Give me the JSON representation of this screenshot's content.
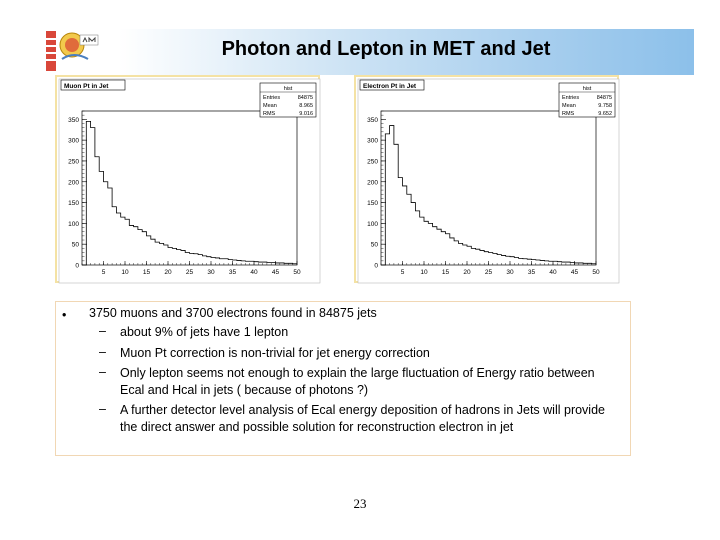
{
  "slide": {
    "title": "Photon and Lepton in MET and Jet",
    "page_number": "23"
  },
  "notes": {
    "bullet": "•",
    "main": "3750 muons and 3700 electrons found in 84875 jets",
    "dash": "–",
    "items": [
      "about 9% of jets have 1 lepton",
      "Muon Pt correction is non-trivial for jet energy correction",
      "Only lepton seems not enough to explain the large fluctuation of Energy ratio between Ecal and Hcal in jets ( because of photons ?)",
      "A further detector level analysis of Ecal energy deposition of hadrons in Jets will provide the direct answer and possible solution for reconstruction electron in jet"
    ]
  },
  "colors": {
    "frame_border": "#f4e2a4",
    "canvas_bg": "#ffffff",
    "histogram_line": "#000000"
  },
  "chart_data": [
    {
      "type": "histogram",
      "title": "Muon Pt in Jet",
      "stats": {
        "header": "hist",
        "rows": [
          [
            "Entries",
            "84875"
          ],
          [
            "Mean",
            "8.965"
          ],
          [
            "RMS",
            "9.016"
          ]
        ]
      },
      "xlim": [
        0,
        50
      ],
      "ylim": [
        0,
        370
      ],
      "x_ticks": [
        5,
        10,
        15,
        20,
        25,
        30,
        35,
        40,
        45,
        50
      ],
      "y_ticks": [
        0,
        50,
        100,
        150,
        200,
        250,
        300,
        350
      ],
      "bin_width": 1,
      "bin_start": 0,
      "values": [
        0,
        345,
        330,
        260,
        225,
        200,
        185,
        140,
        125,
        115,
        110,
        95,
        92,
        85,
        80,
        70,
        62,
        55,
        52,
        48,
        42,
        40,
        37,
        35,
        30,
        28,
        27,
        25,
        22,
        20,
        18,
        17,
        15,
        15,
        13,
        12,
        11,
        10,
        9,
        9,
        8,
        7,
        7,
        6,
        6,
        5,
        5,
        4,
        4,
        3
      ]
    },
    {
      "type": "histogram",
      "title": "Electron Pt in Jet",
      "stats": {
        "header": "hist",
        "rows": [
          [
            "Entries",
            "84875"
          ],
          [
            "Mean",
            "9.758"
          ],
          [
            "RMS",
            "9.652"
          ]
        ]
      },
      "xlim": [
        0,
        50
      ],
      "ylim": [
        0,
        370
      ],
      "x_ticks": [
        5,
        10,
        15,
        20,
        25,
        30,
        35,
        40,
        45,
        50
      ],
      "y_ticks": [
        0,
        50,
        100,
        150,
        200,
        250,
        300,
        350
      ],
      "bin_width": 1,
      "bin_start": 0,
      "values": [
        0,
        315,
        335,
        290,
        210,
        190,
        170,
        150,
        130,
        115,
        105,
        100,
        92,
        86,
        80,
        75,
        65,
        58,
        52,
        48,
        45,
        40,
        38,
        35,
        32,
        30,
        28,
        25,
        23,
        21,
        20,
        18,
        16,
        15,
        14,
        13,
        12,
        11,
        10,
        9,
        9,
        8,
        7,
        7,
        6,
        5,
        5,
        4,
        4,
        3
      ]
    }
  ]
}
